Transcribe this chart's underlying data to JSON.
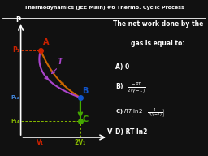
{
  "title": "Thermodynamics (JEE Main) #6 Thermo. Cyclic Process",
  "bg_color": "#111111",
  "point_A": [
    1.0,
    1.0
  ],
  "point_B": [
    2.0,
    0.5
  ],
  "point_C": [
    2.0,
    0.25
  ],
  "p1_label": "P₁",
  "p12_label": "P₁₂",
  "p14_label": "P₁₄",
  "v1_label": "V₁",
  "v2_label": "2V₁",
  "xlabel": "V",
  "ylabel": "P",
  "T_label": "T",
  "color_A": "#cc2200",
  "color_B": "#1155cc",
  "color_C": "#44aa00",
  "color_purple": "#aa44cc",
  "color_orange": "#cc6600",
  "color_dashed_red": "#cc3300",
  "color_dashed_blue": "#4488dd",
  "color_dashed_green": "#88bb00",
  "color_p1": "#cc2200",
  "color_p12": "#4488dd",
  "color_p14": "#88bb00",
  "color_v1": "#cc2200",
  "color_v2": "#88bb00"
}
